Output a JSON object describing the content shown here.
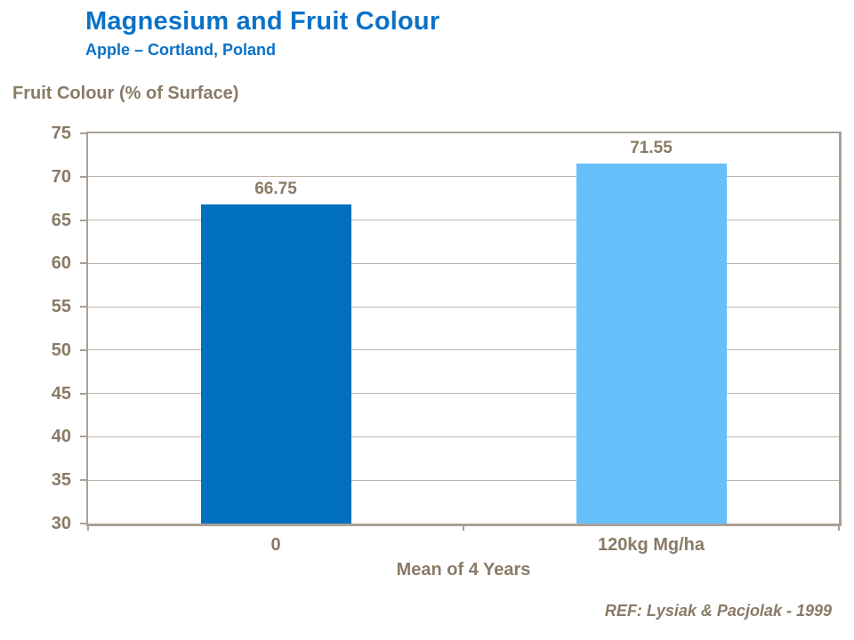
{
  "header": {
    "title": "Magnesium and Fruit Colour",
    "subtitle": "Apple – Cortland, Poland"
  },
  "footer": {
    "reference": "REF: Lysiak & Pacjolak - 1999"
  },
  "colors": {
    "title_blue": "#0a71c7",
    "text_brown": "#8a7a66",
    "axis": "#a9a096",
    "gridline": "#bcb4ab",
    "bar_dark_blue": "#0070bd",
    "bar_light_blue": "#67bffa"
  },
  "chart_data": {
    "type": "bar",
    "title": "Magnesium and Fruit Colour",
    "subtitle": "Apple – Cortland, Poland",
    "categories": [
      "0",
      "120kg Mg/ha"
    ],
    "values": [
      66.75,
      71.55
    ],
    "value_labels": [
      "66.75",
      "71.55"
    ],
    "bar_colors": [
      "#0070bd",
      "#67bffa"
    ],
    "xlabel": "Mean of 4 Years",
    "ylabel": "Fruit Colour (% of Surface)",
    "ylim": [
      30,
      75
    ],
    "yticks": [
      75,
      70,
      65,
      60,
      55,
      50,
      45,
      40,
      35,
      30
    ],
    "grid": "horizontal",
    "legend_position": "none"
  }
}
